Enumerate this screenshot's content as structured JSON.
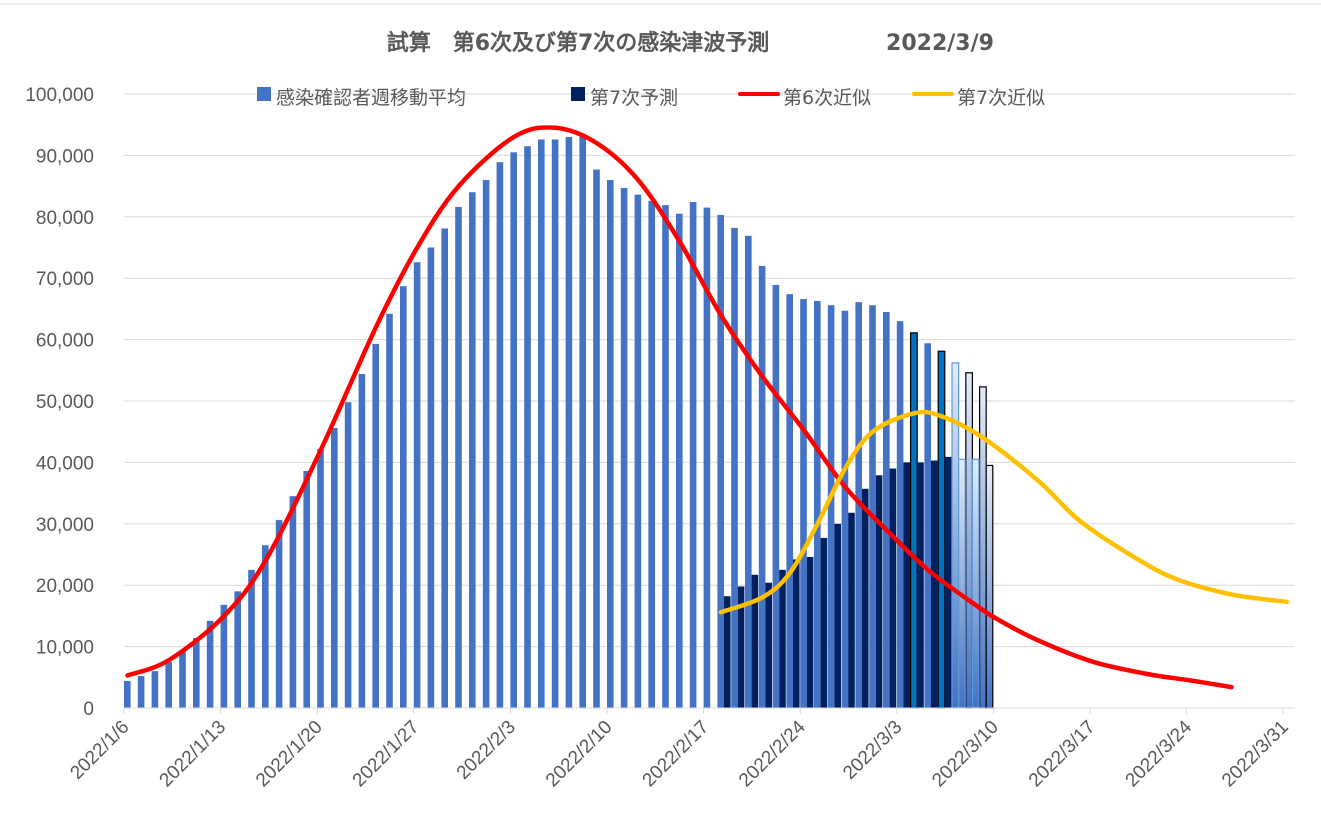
{
  "chart_data": {
    "type": "bar",
    "title": "試算　第6次及び第7次の感染津波予測",
    "title_date": "2022/3/9",
    "xlabel": "",
    "ylabel": "",
    "ylim": [
      0,
      100000
    ],
    "yticks": [
      "0",
      "10,000",
      "20,000",
      "30,000",
      "40,000",
      "50,000",
      "60,000",
      "70,000",
      "80,000",
      "90,000",
      "100,000"
    ],
    "x_start": "2022/1/6",
    "x_days": 84,
    "xticks": [
      "2022/1/6",
      "2022/1/13",
      "2022/1/20",
      "2022/1/27",
      "2022/2/3",
      "2022/2/10",
      "2022/2/17",
      "2022/2/24",
      "2022/3/3",
      "2022/3/10",
      "2022/3/17",
      "2022/3/24",
      "2022/3/31"
    ],
    "grid": true,
    "legend_position": "top",
    "legend": [
      "感染確認者週移動平均",
      "第7次予測",
      "第6次近似",
      "第7次近似"
    ],
    "colors": {
      "actual": "#4472C4",
      "forecast7": "#002060",
      "fit6": "#FF0000",
      "fit7": "#FFC000",
      "highlight": "#0070C0"
    },
    "series": [
      {
        "name": "感染確認者週移動平均",
        "kind": "bar",
        "start_day": 0,
        "values": [
          4400,
          5200,
          6000,
          7500,
          9400,
          11400,
          14200,
          16800,
          19000,
          22500,
          26500,
          30600,
          34500,
          38600,
          42200,
          45600,
          49800,
          54400,
          59300,
          64200,
          68700,
          72600,
          75000,
          78100,
          81600,
          84000,
          86000,
          88900,
          90500,
          91500,
          92600,
          92600,
          93000,
          93100,
          87700,
          86000,
          84700,
          83600,
          82600,
          81900,
          80500,
          82400,
          81500,
          80300,
          78200,
          76900,
          72000,
          68900,
          67400,
          66600,
          66300,
          65600,
          64700,
          66100,
          65600,
          64500,
          63000,
          61100,
          59400,
          58100,
          56200,
          54600,
          52300
        ],
        "bar_styles_last": [
          "highlight",
          "normal",
          "highlight",
          "gradient-blue-edge",
          "gradient-black-edge",
          "gradient-black-edge"
        ]
      },
      {
        "name": "第7次予測",
        "kind": "bar",
        "start_day": 43,
        "values": [
          18200,
          19800,
          21700,
          20400,
          22500,
          24200,
          24600,
          27700,
          30000,
          31800,
          35700,
          37900,
          39000,
          40000,
          40000,
          40300,
          40900,
          40500,
          40500,
          39500
        ],
        "bar_styles_last": [
          "gradient-blue-edge",
          "gradient-blue-edge",
          "white-black-edge"
        ]
      },
      {
        "name": "第6次近似",
        "kind": "line",
        "points": [
          [
            0,
            5300
          ],
          [
            3,
            7800
          ],
          [
            7,
            15000
          ],
          [
            10,
            24000
          ],
          [
            14,
            42000
          ],
          [
            18,
            62000
          ],
          [
            21,
            75000
          ],
          [
            24,
            85000
          ],
          [
            28,
            93000
          ],
          [
            31,
            94500
          ],
          [
            34,
            92000
          ],
          [
            37,
            86000
          ],
          [
            40,
            76000
          ],
          [
            43,
            64000
          ],
          [
            46,
            54000
          ],
          [
            49,
            45300
          ],
          [
            52,
            36000
          ],
          [
            55,
            29000
          ],
          [
            58,
            22500
          ],
          [
            61,
            17500
          ],
          [
            63,
            14500
          ],
          [
            66,
            11000
          ],
          [
            70,
            7500
          ],
          [
            74,
            5500
          ],
          [
            77,
            4500
          ],
          [
            80,
            3400
          ]
        ]
      },
      {
        "name": "第7次近似",
        "kind": "line",
        "points": [
          [
            43,
            15600
          ],
          [
            46,
            18000
          ],
          [
            48,
            22000
          ],
          [
            50,
            30000
          ],
          [
            52,
            39000
          ],
          [
            54,
            45000
          ],
          [
            57,
            48000
          ],
          [
            59,
            47500
          ],
          [
            62,
            44000
          ],
          [
            66,
            37000
          ],
          [
            69,
            30500
          ],
          [
            73,
            24500
          ],
          [
            76,
            21000
          ],
          [
            80,
            18500
          ],
          [
            84,
            17300
          ]
        ]
      }
    ]
  }
}
